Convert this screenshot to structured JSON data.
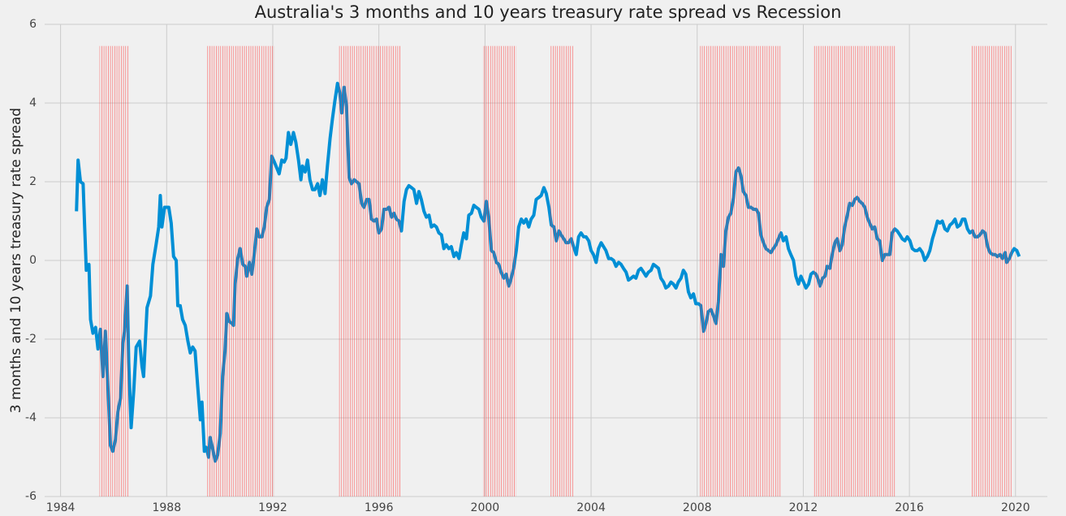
{
  "chart_data": {
    "type": "line",
    "title": "Australia's 3 months and 10 years treasury rate spread vs Recession",
    "y_label": "3 months and 10 years treasury rate spread",
    "xlim": [
      1983.4,
      2021.2
    ],
    "ylim": [
      -6,
      6
    ],
    "xticks": [
      1984,
      1988,
      1992,
      1996,
      2000,
      2004,
      2008,
      2012,
      2016,
      2020
    ],
    "yticks": [
      -6,
      -4,
      -2,
      0,
      2,
      4,
      6
    ],
    "grid": true,
    "recession_color": "#ff3333",
    "recessions": [
      {
        "start": 1985.47,
        "end": 1986.6
      },
      {
        "start": 1989.49,
        "end": 1992.06
      },
      {
        "start": 1994.5,
        "end": 1996.85
      },
      {
        "start": 1999.9,
        "end": 2001.18
      },
      {
        "start": 2002.43,
        "end": 2003.34
      },
      {
        "start": 2008.1,
        "end": 2011.18
      },
      {
        "start": 2012.4,
        "end": 2015.47
      },
      {
        "start": 2018.33,
        "end": 2019.86
      }
    ],
    "series": [
      {
        "color": "#008fd5",
        "x": [
          1984.6,
          1984.66,
          1984.75,
          1984.85,
          1984.9,
          1984.97,
          1985.07,
          1985.13,
          1985.22,
          1985.32,
          1985.41,
          1985.5,
          1985.6,
          1985.69,
          1985.79,
          1985.88,
          1985.97,
          1986.07,
          1986.16,
          1986.26,
          1986.35,
          1986.41,
          1986.51,
          1986.57,
          1986.66,
          1986.76,
          1986.85,
          1986.98,
          1987.07,
          1987.13,
          1987.26,
          1987.39,
          1987.48,
          1987.6,
          1987.7,
          1987.76,
          1987.82,
          1987.92,
          1988.08,
          1988.17,
          1988.26,
          1988.36,
          1988.42,
          1988.51,
          1988.6,
          1988.7,
          1988.8,
          1988.89,
          1988.98,
          1989.07,
          1989.17,
          1989.27,
          1989.33,
          1989.42,
          1989.49,
          1989.58,
          1989.64,
          1989.74,
          1989.83,
          1989.92,
          1990.02,
          1990.11,
          1990.2,
          1990.27,
          1990.36,
          1990.46,
          1990.52,
          1990.58,
          1990.68,
          1990.77,
          1990.87,
          1990.96,
          1991.02,
          1991.12,
          1991.21,
          1991.3,
          1991.4,
          1991.49,
          1991.59,
          1991.68,
          1991.77,
          1991.87,
          1991.96,
          1992.06,
          1992.15,
          1992.24,
          1992.34,
          1992.43,
          1992.5,
          1992.59,
          1992.68,
          1992.78,
          1992.87,
          1992.97,
          1993.06,
          1993.12,
          1993.22,
          1993.31,
          1993.4,
          1993.5,
          1993.59,
          1993.69,
          1993.78,
          1993.87,
          1993.97,
          1994.06,
          1994.16,
          1994.25,
          1994.34,
          1994.44,
          1994.53,
          1994.6,
          1994.69,
          1994.78,
          1994.88,
          1994.97,
          1995.07,
          1995.16,
          1995.25,
          1995.35,
          1995.44,
          1995.54,
          1995.63,
          1995.72,
          1995.82,
          1995.91,
          1996.0,
          1996.1,
          1996.19,
          1996.29,
          1996.38,
          1996.48,
          1996.57,
          1996.66,
          1996.76,
          1996.85,
          1996.95,
          1997.04,
          1997.13,
          1997.23,
          1997.32,
          1997.42,
          1997.51,
          1997.6,
          1997.7,
          1997.79,
          1997.89,
          1997.98,
          1998.08,
          1998.17,
          1998.26,
          1998.36,
          1998.45,
          1998.54,
          1998.64,
          1998.73,
          1998.83,
          1998.92,
          1999.02,
          1999.11,
          1999.2,
          1999.3,
          1999.39,
          1999.49,
          1999.58,
          1999.67,
          1999.77,
          1999.86,
          1999.96,
          2000.05,
          2000.14,
          2000.24,
          2000.33,
          2000.43,
          2000.52,
          2000.61,
          2000.71,
          2000.8,
          2000.9,
          2000.99,
          2001.08,
          2001.18,
          2001.27,
          2001.37,
          2001.46,
          2001.55,
          2001.65,
          2001.74,
          2001.84,
          2001.93,
          2002.03,
          2002.12,
          2002.22,
          2002.31,
          2002.41,
          2002.5,
          2002.6,
          2002.69,
          2002.79,
          2002.87,
          2002.97,
          2003.06,
          2003.15,
          2003.25,
          2003.34,
          2003.44,
          2003.53,
          2003.62,
          2003.72,
          2003.81,
          2003.91,
          2004.0,
          2004.09,
          2004.19,
          2004.28,
          2004.38,
          2004.47,
          2004.56,
          2004.66,
          2004.75,
          2004.85,
          2004.94,
          2005.04,
          2005.13,
          2005.22,
          2005.32,
          2005.41,
          2005.51,
          2005.6,
          2005.69,
          2005.79,
          2005.88,
          2005.98,
          2006.07,
          2006.16,
          2006.26,
          2006.35,
          2006.45,
          2006.54,
          2006.63,
          2006.73,
          2006.82,
          2006.92,
          2007.01,
          2007.1,
          2007.2,
          2007.29,
          2007.39,
          2007.48,
          2007.57,
          2007.67,
          2007.76,
          2007.86,
          2007.95,
          2008.05,
          2008.14,
          2008.24,
          2008.33,
          2008.42,
          2008.52,
          2008.61,
          2008.71,
          2008.8,
          2008.9,
          2008.99,
          2009.08,
          2009.18,
          2009.27,
          2009.37,
          2009.46,
          2009.56,
          2009.65,
          2009.74,
          2009.84,
          2009.93,
          2010.03,
          2010.12,
          2010.22,
          2010.31,
          2010.4,
          2010.5,
          2010.59,
          2010.69,
          2010.78,
          2010.87,
          2010.97,
          2011.06,
          2011.16,
          2011.25,
          2011.35,
          2011.44,
          2011.53,
          2011.63,
          2011.72,
          2011.82,
          2011.91,
          2012.01,
          2012.1,
          2012.2,
          2012.29,
          2012.38,
          2012.48,
          2012.57,
          2012.63,
          2012.73,
          2012.82,
          2012.9,
          2013.0,
          2013.09,
          2013.19,
          2013.28,
          2013.38,
          2013.47,
          2013.56,
          2013.66,
          2013.75,
          2013.85,
          2013.94,
          2014.03,
          2014.13,
          2014.22,
          2014.32,
          2014.41,
          2014.5,
          2014.6,
          2014.69,
          2014.79,
          2014.88,
          2014.98,
          2015.07,
          2015.17,
          2015.26,
          2015.35,
          2015.45,
          2015.54,
          2015.64,
          2015.73,
          2015.83,
          2015.92,
          2016.02,
          2016.11,
          2016.21,
          2016.3,
          2016.39,
          2016.49,
          2016.58,
          2016.68,
          2016.77,
          2016.87,
          2016.96,
          2017.06,
          2017.15,
          2017.24,
          2017.34,
          2017.43,
          2017.53,
          2017.62,
          2017.72,
          2017.81,
          2017.91,
          2018.0,
          2018.09,
          2018.19,
          2018.28,
          2018.38,
          2018.47,
          2018.57,
          2018.66,
          2018.76,
          2018.85,
          2018.95,
          2019.04,
          2019.14,
          2019.23,
          2019.32,
          2019.42,
          2019.51,
          2019.61,
          2019.67,
          2019.77,
          2019.86,
          2019.95,
          2020.05,
          2020.14
        ],
        "values": [
          1.25,
          2.55,
          2.0,
          1.95,
          1.0,
          -0.25,
          -0.1,
          -1.5,
          -1.85,
          -1.7,
          -2.25,
          -1.75,
          -2.95,
          -1.8,
          -3.3,
          -4.7,
          -4.85,
          -4.55,
          -3.85,
          -3.5,
          -2.1,
          -1.8,
          -0.65,
          -2.6,
          -4.25,
          -3.3,
          -2.2,
          -2.05,
          -2.7,
          -2.95,
          -1.2,
          -0.9,
          -0.1,
          0.4,
          0.85,
          1.65,
          0.85,
          1.35,
          1.35,
          0.95,
          0.1,
          0.0,
          -1.15,
          -1.15,
          -1.5,
          -1.65,
          -2.05,
          -2.35,
          -2.2,
          -2.3,
          -3.2,
          -4.05,
          -3.6,
          -4.85,
          -4.75,
          -5.0,
          -4.5,
          -4.8,
          -5.1,
          -4.95,
          -4.4,
          -2.95,
          -2.3,
          -1.35,
          -1.55,
          -1.6,
          -1.65,
          -0.6,
          0.05,
          0.3,
          -0.1,
          -0.15,
          -0.4,
          -0.05,
          -0.35,
          0.15,
          0.8,
          0.6,
          0.6,
          0.85,
          1.35,
          1.55,
          2.65,
          2.5,
          2.35,
          2.2,
          2.55,
          2.5,
          2.6,
          3.25,
          2.95,
          3.25,
          3.0,
          2.55,
          2.05,
          2.4,
          2.25,
          2.55,
          2.05,
          1.8,
          1.8,
          1.95,
          1.65,
          2.05,
          1.7,
          2.4,
          3.1,
          3.6,
          4.05,
          4.5,
          4.25,
          3.75,
          4.4,
          3.9,
          2.1,
          1.95,
          2.05,
          2.0,
          1.95,
          1.45,
          1.35,
          1.55,
          1.55,
          1.05,
          1.0,
          1.05,
          0.7,
          0.8,
          1.3,
          1.3,
          1.35,
          1.1,
          1.2,
          1.05,
          1.0,
          0.75,
          1.5,
          1.8,
          1.9,
          1.85,
          1.8,
          1.45,
          1.75,
          1.55,
          1.25,
          1.1,
          1.15,
          0.85,
          0.9,
          0.85,
          0.7,
          0.65,
          0.3,
          0.4,
          0.3,
          0.35,
          0.1,
          0.2,
          0.05,
          0.4,
          0.7,
          0.55,
          1.15,
          1.2,
          1.4,
          1.35,
          1.3,
          1.1,
          1.0,
          1.5,
          1.1,
          0.25,
          0.2,
          -0.05,
          -0.1,
          -0.3,
          -0.45,
          -0.35,
          -0.65,
          -0.45,
          -0.2,
          0.25,
          0.85,
          1.05,
          0.95,
          1.05,
          0.85,
          1.05,
          1.15,
          1.55,
          1.6,
          1.65,
          1.85,
          1.7,
          1.35,
          0.9,
          0.85,
          0.5,
          0.75,
          0.65,
          0.55,
          0.45,
          0.45,
          0.55,
          0.35,
          0.15,
          0.6,
          0.7,
          0.6,
          0.6,
          0.5,
          0.25,
          0.15,
          -0.05,
          0.3,
          0.45,
          0.35,
          0.25,
          0.05,
          0.05,
          0.0,
          -0.15,
          -0.05,
          -0.1,
          -0.2,
          -0.3,
          -0.5,
          -0.45,
          -0.4,
          -0.45,
          -0.25,
          -0.2,
          -0.3,
          -0.4,
          -0.3,
          -0.25,
          -0.1,
          -0.15,
          -0.2,
          -0.45,
          -0.55,
          -0.7,
          -0.65,
          -0.55,
          -0.6,
          -0.7,
          -0.55,
          -0.45,
          -0.25,
          -0.35,
          -0.8,
          -0.95,
          -0.85,
          -1.1,
          -1.1,
          -1.15,
          -1.8,
          -1.6,
          -1.3,
          -1.25,
          -1.4,
          -1.6,
          -1.05,
          0.15,
          -0.15,
          0.75,
          1.1,
          1.2,
          1.6,
          2.25,
          2.35,
          2.15,
          1.75,
          1.65,
          1.35,
          1.35,
          1.3,
          1.3,
          1.2,
          0.65,
          0.45,
          0.3,
          0.25,
          0.2,
          0.3,
          0.4,
          0.55,
          0.7,
          0.5,
          0.6,
          0.3,
          0.15,
          0.0,
          -0.4,
          -0.6,
          -0.4,
          -0.55,
          -0.7,
          -0.6,
          -0.35,
          -0.3,
          -0.35,
          -0.5,
          -0.65,
          -0.45,
          -0.4,
          -0.15,
          -0.2,
          0.15,
          0.45,
          0.55,
          0.25,
          0.4,
          0.85,
          1.15,
          1.45,
          1.4,
          1.55,
          1.6,
          1.5,
          1.45,
          1.35,
          1.1,
          0.95,
          0.8,
          0.85,
          0.55,
          0.5,
          0.0,
          0.15,
          0.15,
          0.15,
          0.7,
          0.8,
          0.75,
          0.65,
          0.55,
          0.5,
          0.6,
          0.5,
          0.3,
          0.25,
          0.25,
          0.3,
          0.2,
          0.0,
          0.1,
          0.25,
          0.55,
          0.75,
          1.0,
          0.95,
          1.0,
          0.8,
          0.75,
          0.9,
          0.95,
          1.05,
          0.85,
          0.9,
          1.05,
          1.05,
          0.8,
          0.7,
          0.75,
          0.6,
          0.6,
          0.65,
          0.75,
          0.7,
          0.35,
          0.2,
          0.15,
          0.15,
          0.1,
          0.15,
          0.05,
          0.2,
          -0.05,
          0.05,
          0.2,
          0.3,
          0.25,
          0.1
        ]
      }
    ]
  }
}
